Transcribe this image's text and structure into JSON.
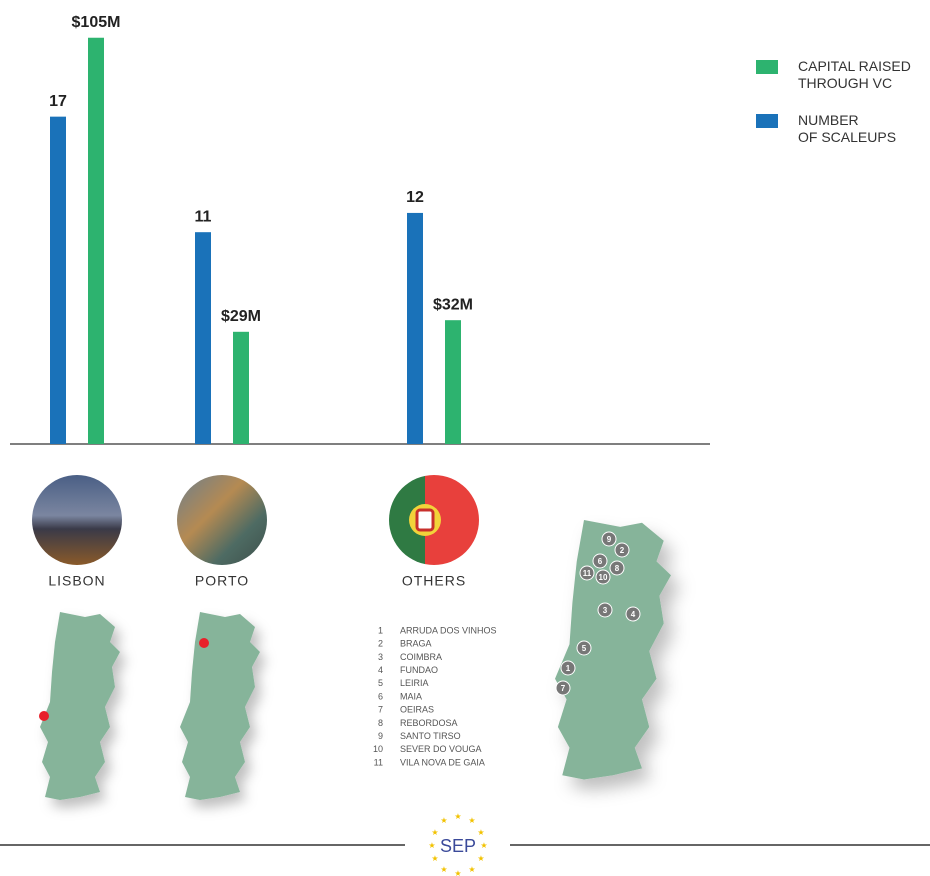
{
  "chart_data": {
    "type": "bar",
    "categories": [
      "LISBON",
      "PORTO",
      "OTHERS"
    ],
    "series": [
      {
        "name": "NUMBER\nOF SCALEUPS",
        "color": "#1a72b9",
        "values": [
          17,
          11,
          12
        ]
      },
      {
        "name": "CAPITAL RAISED\nTHROUGH VC",
        "color": "#2db36f",
        "axis": "y2",
        "values": [
          105,
          29,
          32
        ],
        "value_labels": [
          "$105M",
          "$29M",
          "$32M"
        ]
      }
    ],
    "ylim": [
      0,
      21.5
    ],
    "y2lim": [
      0,
      107
    ]
  },
  "others_list": [
    {
      "number": 1,
      "name": "ARRUDA DOS VINHOS"
    },
    {
      "number": 2,
      "name": "BRAGA"
    },
    {
      "number": 3,
      "name": "COIMBRA"
    },
    {
      "number": 4,
      "name": "FUNDAO"
    },
    {
      "number": 5,
      "name": "LEIRIA"
    },
    {
      "number": 6,
      "name": "MAIA"
    },
    {
      "number": 7,
      "name": "OEIRAS"
    },
    {
      "number": 8,
      "name": "REBORDOSA"
    },
    {
      "number": 9,
      "name": "SANTO TIRSO"
    },
    {
      "number": 10,
      "name": "SEVER DO VOUGA"
    },
    {
      "number": 11,
      "name": "VILA NOVA DE GAIA"
    }
  ],
  "footer": {
    "logo": "SEP"
  }
}
